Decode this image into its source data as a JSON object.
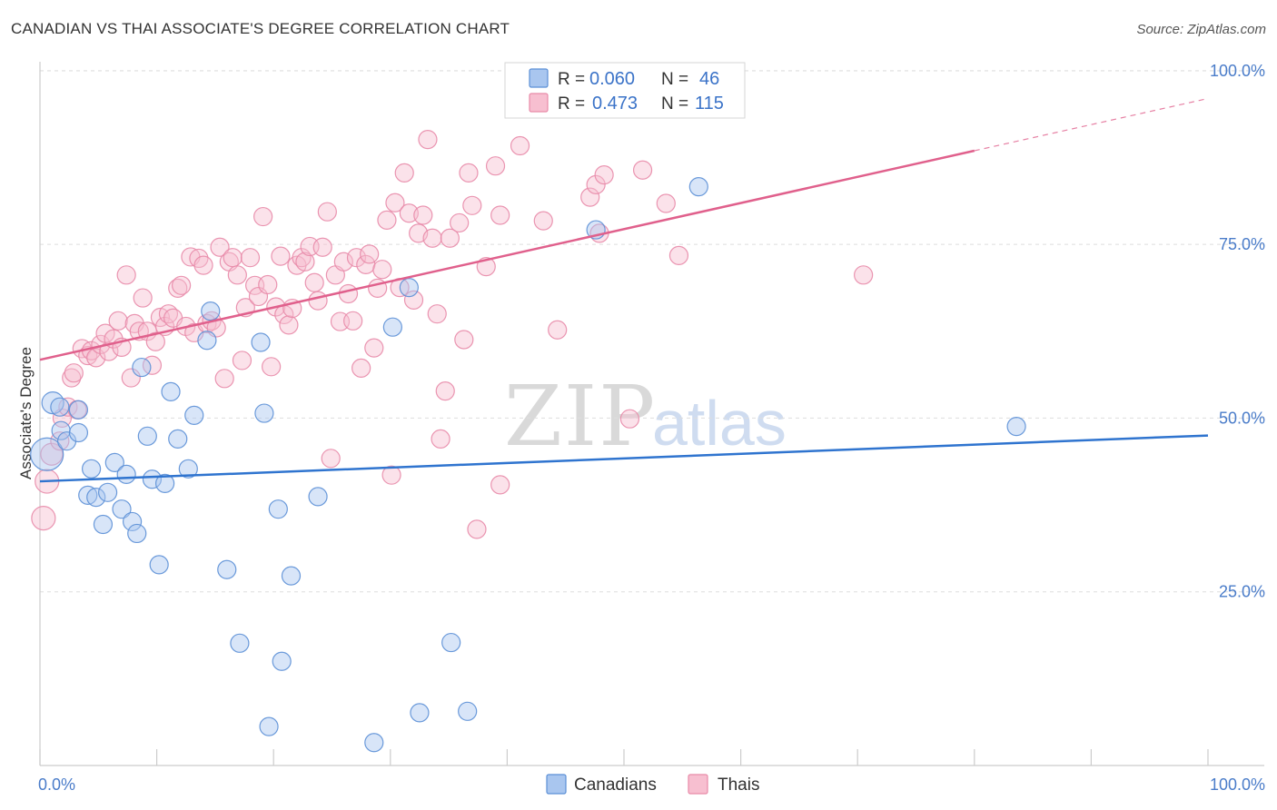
{
  "title": "CANADIAN VS THAI ASSOCIATE'S DEGREE CORRELATION CHART",
  "source": "Source: ZipAtlas.com",
  "watermark": {
    "zip": "ZIP",
    "atlas": "atlas"
  },
  "legend": {
    "rows": [
      {
        "r_label": "R =",
        "r_value": "0.060",
        "n_label": "N =",
        "n_value": "46"
      },
      {
        "r_label": "R =",
        "r_value": "0.473",
        "n_label": "N =",
        "n_value": "115"
      }
    ]
  },
  "colors": {
    "canadians_fill": "#a9c6ef",
    "canadians_stroke": "#5b8fd6",
    "canadians_line": "#2f74cf",
    "thais_fill": "#f7bfd0",
    "thais_stroke": "#e88aa8",
    "thais_line": "#e0608c",
    "tick_label": "#4a7cc9",
    "grid": "#dddddd"
  },
  "chart_data": {
    "type": "scatter",
    "title": "CANADIAN VS THAI ASSOCIATE'S DEGREE CORRELATION CHART",
    "xlabel": "",
    "ylabel": "Associate's Degree",
    "xlim": [
      0,
      100
    ],
    "ylim": [
      0,
      105
    ],
    "x_tick_labels": [
      "0.0%",
      "100.0%"
    ],
    "y_ticks": [
      25,
      50,
      75,
      100
    ],
    "y_tick_labels": [
      "25.0%",
      "50.0%",
      "75.0%",
      "100.0%"
    ],
    "grid": "horizontal dashed",
    "legend_position": "bottom-center",
    "series": [
      {
        "name": "Canadians",
        "r": 0.06,
        "n": 46,
        "trend": {
          "x": [
            0,
            100
          ],
          "y": [
            40.9,
            47.5
          ],
          "dashed_from_x": null
        },
        "points": [
          [
            0.6,
            44.8,
            18
          ],
          [
            1.1,
            52.2,
            12
          ],
          [
            1.7,
            51.6,
            10
          ],
          [
            1.8,
            48.2,
            10
          ],
          [
            2.3,
            46.7,
            10
          ],
          [
            3.3,
            51.2,
            10
          ],
          [
            3.3,
            47.9,
            10
          ],
          [
            4.1,
            38.9,
            10
          ],
          [
            4.4,
            42.7,
            10
          ],
          [
            4.8,
            38.6,
            10
          ],
          [
            5.4,
            34.7,
            10
          ],
          [
            5.8,
            39.3,
            10
          ],
          [
            6.4,
            43.6,
            10
          ],
          [
            7.0,
            36.9,
            10
          ],
          [
            7.4,
            41.9,
            10
          ],
          [
            7.9,
            35.1,
            10
          ],
          [
            8.3,
            33.4,
            10
          ],
          [
            8.7,
            57.3,
            10
          ],
          [
            9.2,
            47.4,
            10
          ],
          [
            9.6,
            41.2,
            10
          ],
          [
            10.2,
            28.9,
            10
          ],
          [
            10.7,
            40.6,
            10
          ],
          [
            11.2,
            53.8,
            10
          ],
          [
            11.8,
            47.0,
            10
          ],
          [
            12.7,
            42.7,
            10
          ],
          [
            13.2,
            50.4,
            10
          ],
          [
            14.3,
            61.2,
            10
          ],
          [
            14.6,
            65.4,
            10
          ],
          [
            16.0,
            28.2,
            10
          ],
          [
            17.1,
            17.6,
            10
          ],
          [
            18.9,
            60.9,
            10
          ],
          [
            19.2,
            50.7,
            10
          ],
          [
            19.6,
            5.6,
            10
          ],
          [
            20.4,
            36.9,
            10
          ],
          [
            20.7,
            15.0,
            10
          ],
          [
            21.5,
            27.3,
            10
          ],
          [
            23.8,
            38.7,
            10
          ],
          [
            28.6,
            3.3,
            10
          ],
          [
            30.2,
            63.1,
            10
          ],
          [
            31.6,
            68.8,
            10
          ],
          [
            32.5,
            7.6,
            10
          ],
          [
            35.2,
            17.7,
            10
          ],
          [
            36.6,
            7.8,
            10
          ],
          [
            47.6,
            77.1,
            10
          ],
          [
            56.4,
            83.3,
            10
          ],
          [
            83.6,
            48.8,
            10
          ]
        ]
      },
      {
        "name": "Thais",
        "r": 0.473,
        "n": 115,
        "trend": {
          "x": [
            0,
            100
          ],
          "y": [
            58.4,
            96.0
          ],
          "dashed_from_x": 80
        },
        "points": [
          [
            0.3,
            35.6,
            13
          ],
          [
            0.6,
            40.9,
            13
          ],
          [
            1.0,
            44.8,
            12
          ],
          [
            1.7,
            46.7,
            10
          ],
          [
            1.9,
            50.0,
            10
          ],
          [
            2.4,
            51.6,
            10
          ],
          [
            2.7,
            55.8,
            10
          ],
          [
            2.9,
            56.5,
            10
          ],
          [
            3.2,
            51.2,
            10
          ],
          [
            3.6,
            60.0,
            10
          ],
          [
            4.1,
            59.0,
            10
          ],
          [
            4.4,
            59.7,
            10
          ],
          [
            4.8,
            58.7,
            10
          ],
          [
            5.2,
            60.6,
            10
          ],
          [
            5.6,
            62.2,
            10
          ],
          [
            5.9,
            59.6,
            10
          ],
          [
            6.3,
            61.4,
            10
          ],
          [
            6.7,
            64.0,
            10
          ],
          [
            7.0,
            60.2,
            10
          ],
          [
            7.4,
            70.6,
            10
          ],
          [
            7.8,
            55.8,
            10
          ],
          [
            8.1,
            63.6,
            10
          ],
          [
            8.5,
            62.5,
            10
          ],
          [
            8.8,
            67.3,
            10
          ],
          [
            9.2,
            62.5,
            10
          ],
          [
            9.6,
            57.6,
            10
          ],
          [
            9.9,
            61.0,
            10
          ],
          [
            10.3,
            64.5,
            10
          ],
          [
            10.7,
            63.2,
            10
          ],
          [
            11.0,
            65.0,
            10
          ],
          [
            11.4,
            64.4,
            10
          ],
          [
            11.8,
            68.7,
            10
          ],
          [
            12.1,
            69.1,
            10
          ],
          [
            12.5,
            63.2,
            10
          ],
          [
            12.9,
            73.2,
            10
          ],
          [
            13.2,
            62.3,
            10
          ],
          [
            13.6,
            73.0,
            10
          ],
          [
            14.0,
            72.0,
            10
          ],
          [
            14.3,
            63.6,
            10
          ],
          [
            14.7,
            64.0,
            10
          ],
          [
            15.1,
            63.0,
            10
          ],
          [
            15.4,
            74.6,
            10
          ],
          [
            15.8,
            55.7,
            10
          ],
          [
            16.2,
            72.5,
            10
          ],
          [
            16.5,
            73.1,
            10
          ],
          [
            16.9,
            70.6,
            10
          ],
          [
            17.3,
            58.3,
            10
          ],
          [
            17.6,
            65.9,
            10
          ],
          [
            18.0,
            73.1,
            10
          ],
          [
            18.4,
            69.1,
            10
          ],
          [
            18.7,
            67.5,
            10
          ],
          [
            19.1,
            79.0,
            10
          ],
          [
            19.5,
            69.2,
            10
          ],
          [
            19.8,
            57.4,
            10
          ],
          [
            20.2,
            66.0,
            10
          ],
          [
            20.6,
            73.3,
            10
          ],
          [
            20.9,
            64.9,
            10
          ],
          [
            21.3,
            63.4,
            10
          ],
          [
            21.6,
            65.8,
            10
          ],
          [
            22.0,
            72.0,
            10
          ],
          [
            22.4,
            73.1,
            10
          ],
          [
            22.7,
            72.5,
            10
          ],
          [
            23.1,
            74.7,
            10
          ],
          [
            23.5,
            69.5,
            10
          ],
          [
            23.8,
            66.9,
            10
          ],
          [
            24.2,
            74.6,
            10
          ],
          [
            24.6,
            79.7,
            10
          ],
          [
            24.9,
            44.2,
            10
          ],
          [
            25.3,
            70.6,
            10
          ],
          [
            25.7,
            63.9,
            10
          ],
          [
            26.0,
            72.5,
            10
          ],
          [
            26.4,
            67.9,
            10
          ],
          [
            26.8,
            64.0,
            10
          ],
          [
            27.1,
            73.1,
            10
          ],
          [
            27.5,
            57.2,
            10
          ],
          [
            27.9,
            72.1,
            10
          ],
          [
            28.2,
            73.6,
            10
          ],
          [
            28.6,
            60.1,
            10
          ],
          [
            28.9,
            68.7,
            10
          ],
          [
            29.3,
            71.4,
            10
          ],
          [
            29.7,
            78.5,
            10
          ],
          [
            30.1,
            41.8,
            10
          ],
          [
            30.4,
            81.0,
            10
          ],
          [
            30.8,
            68.8,
            10
          ],
          [
            31.2,
            85.3,
            10
          ],
          [
            31.6,
            79.5,
            10
          ],
          [
            32.0,
            67.0,
            10
          ],
          [
            32.4,
            76.6,
            10
          ],
          [
            32.8,
            79.2,
            10
          ],
          [
            33.2,
            90.1,
            10
          ],
          [
            33.6,
            75.9,
            10
          ],
          [
            34.0,
            65.0,
            10
          ],
          [
            34.3,
            47.0,
            10
          ],
          [
            34.7,
            53.9,
            10
          ],
          [
            35.1,
            75.9,
            10
          ],
          [
            35.9,
            78.1,
            10
          ],
          [
            36.3,
            61.3,
            10
          ],
          [
            36.7,
            85.3,
            10
          ],
          [
            37.0,
            80.6,
            10
          ],
          [
            37.4,
            34.0,
            10
          ],
          [
            38.2,
            71.8,
            10
          ],
          [
            39.0,
            86.3,
            10
          ],
          [
            39.4,
            79.2,
            10
          ],
          [
            39.4,
            40.4,
            10
          ],
          [
            41.1,
            89.2,
            10
          ],
          [
            43.1,
            78.4,
            10
          ],
          [
            44.3,
            62.7,
            10
          ],
          [
            47.1,
            81.8,
            10
          ],
          [
            47.6,
            83.6,
            10
          ],
          [
            47.9,
            76.6,
            10
          ],
          [
            48.3,
            85.0,
            10
          ],
          [
            50.5,
            49.9,
            10
          ],
          [
            51.6,
            85.7,
            10
          ],
          [
            53.6,
            80.9,
            10
          ],
          [
            54.7,
            73.4,
            10
          ],
          [
            70.5,
            70.6,
            10
          ]
        ]
      }
    ]
  }
}
